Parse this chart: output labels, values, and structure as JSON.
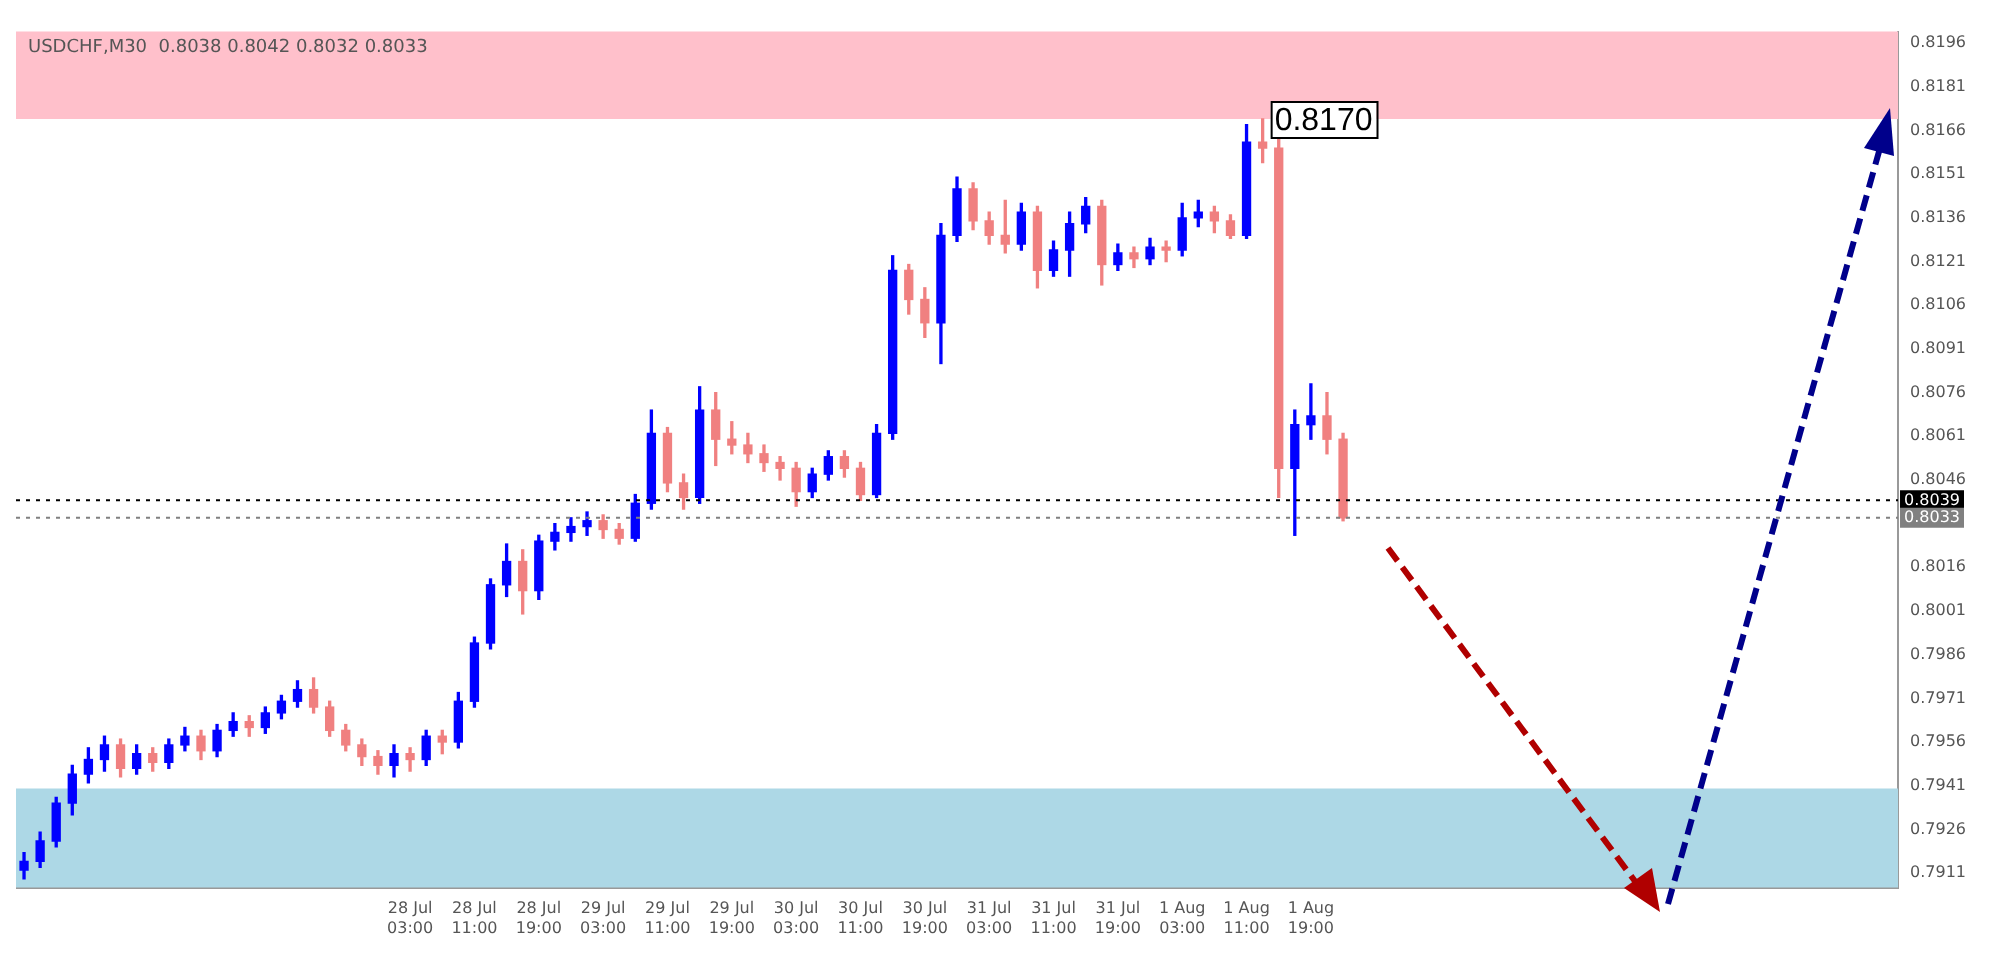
{
  "chart_data": {
    "type": "candlestick",
    "title": "USDCHF,M30  0.8038 0.8042 0.8032 0.8033",
    "categories": [
      null,
      null,
      null,
      null,
      null,
      null,
      null,
      null,
      null,
      null,
      null,
      null,
      null,
      null,
      null,
      null,
      null,
      null,
      null,
      null,
      null,
      null,
      null,
      null,
      "28 Jul 03:00",
      null,
      null,
      null,
      "28 Jul 11:00",
      null,
      null,
      null,
      "28 Jul 19:00",
      null,
      null,
      null,
      "29 Jul 03:00",
      null,
      null,
      null,
      "29 Jul 11:00",
      null,
      null,
      null,
      "29 Jul 19:00",
      null,
      null,
      null,
      "30 Jul 03:00",
      null,
      null,
      null,
      "30 Jul 11:00",
      null,
      null,
      null,
      "30 Jul 19:00",
      null,
      null,
      null,
      "31 Jul 03:00",
      null,
      null,
      null,
      "31 Jul 11:00",
      null,
      null,
      null,
      "31 Jul 19:00",
      null,
      null,
      null,
      "1 Aug 03:00",
      null,
      null,
      null,
      "1 Aug 11:00",
      null,
      null,
      null,
      "1 Aug 19:00",
      null,
      null,
      null,
      null,
      null,
      null,
      null,
      null,
      null,
      null,
      null,
      null,
      null,
      null,
      null,
      null,
      null,
      null,
      null,
      null,
      null,
      null,
      null,
      null,
      null,
      null,
      null,
      null,
      null,
      null,
      null,
      null,
      null,
      null,
      null,
      null
    ],
    "ohlc": [
      [
        0.7912,
        0.7918,
        0.7909,
        0.7915
      ],
      [
        0.7915,
        0.7925,
        0.7913,
        0.7922
      ],
      [
        0.7922,
        0.7937,
        0.792,
        0.7935
      ],
      [
        0.7935,
        0.7948,
        0.7931,
        0.7945
      ],
      [
        0.7945,
        0.7954,
        0.7942,
        0.795
      ],
      [
        0.795,
        0.7958,
        0.7946,
        0.7955
      ],
      [
        0.7955,
        0.7957,
        0.7944,
        0.7947
      ],
      [
        0.7947,
        0.7955,
        0.7945,
        0.7952
      ],
      [
        0.7952,
        0.7954,
        0.7946,
        0.7949
      ],
      [
        0.7949,
        0.7957,
        0.7947,
        0.7955
      ],
      [
        0.7955,
        0.7961,
        0.7953,
        0.7958
      ],
      [
        0.7958,
        0.796,
        0.795,
        0.7953
      ],
      [
        0.7953,
        0.7962,
        0.7951,
        0.796
      ],
      [
        0.796,
        0.7966,
        0.7958,
        0.7963
      ],
      [
        0.7963,
        0.7965,
        0.7958,
        0.7961
      ],
      [
        0.7961,
        0.7968,
        0.7959,
        0.7966
      ],
      [
        0.7966,
        0.7972,
        0.7964,
        0.797
      ],
      [
        0.797,
        0.7977,
        0.7968,
        0.7974
      ],
      [
        0.7974,
        0.7978,
        0.7966,
        0.7968
      ],
      [
        0.7968,
        0.797,
        0.7958,
        0.796
      ],
      [
        0.796,
        0.7962,
        0.7953,
        0.7955
      ],
      [
        0.7955,
        0.7957,
        0.7948,
        0.7951
      ],
      [
        0.7951,
        0.7953,
        0.7945,
        0.7948
      ],
      [
        0.7948,
        0.7955,
        0.7944,
        0.7952
      ],
      [
        0.7952,
        0.7954,
        0.7946,
        0.795
      ],
      [
        0.795,
        0.796,
        0.7948,
        0.7958
      ],
      [
        0.7958,
        0.796,
        0.7952,
        0.7956
      ],
      [
        0.7956,
        0.7973,
        0.7954,
        0.797
      ],
      [
        0.797,
        0.7992,
        0.7968,
        0.799
      ],
      [
        0.799,
        0.8012,
        0.7988,
        0.801
      ],
      [
        0.801,
        0.8024,
        0.8006,
        0.8018
      ],
      [
        0.8018,
        0.8022,
        0.8,
        0.8008
      ],
      [
        0.8008,
        0.8027,
        0.8005,
        0.8025
      ],
      [
        0.8025,
        0.8031,
        0.8022,
        0.8028
      ],
      [
        0.8028,
        0.8033,
        0.8025,
        0.803
      ],
      [
        0.803,
        0.8035,
        0.8027,
        0.8032
      ],
      [
        0.8032,
        0.8034,
        0.8026,
        0.8029
      ],
      [
        0.8029,
        0.8031,
        0.8024,
        0.8026
      ],
      [
        0.8026,
        0.8041,
        0.8025,
        0.8038
      ],
      [
        0.8038,
        0.807,
        0.8036,
        0.8062
      ],
      [
        0.8062,
        0.8064,
        0.8042,
        0.8045
      ],
      [
        0.8045,
        0.8048,
        0.8036,
        0.804
      ],
      [
        0.804,
        0.8078,
        0.8038,
        0.807
      ],
      [
        0.807,
        0.8076,
        0.8051,
        0.806
      ],
      [
        0.806,
        0.8066,
        0.8055,
        0.8058
      ],
      [
        0.8058,
        0.8062,
        0.8052,
        0.8055
      ],
      [
        0.8055,
        0.8058,
        0.8049,
        0.8052
      ],
      [
        0.8052,
        0.8054,
        0.8046,
        0.805
      ],
      [
        0.805,
        0.8052,
        0.8037,
        0.8042
      ],
      [
        0.8042,
        0.805,
        0.804,
        0.8048
      ],
      [
        0.8048,
        0.8056,
        0.8046,
        0.8054
      ],
      [
        0.8054,
        0.8056,
        0.8047,
        0.805
      ],
      [
        0.805,
        0.8052,
        0.8039,
        0.8041
      ],
      [
        0.8041,
        0.8065,
        0.804,
        0.8062
      ],
      [
        0.8062,
        0.8123,
        0.806,
        0.8118
      ],
      [
        0.8118,
        0.812,
        0.8103,
        0.8108
      ],
      [
        0.8108,
        0.8112,
        0.8095,
        0.81
      ],
      [
        0.81,
        0.8134,
        0.8086,
        0.813
      ],
      [
        0.813,
        0.815,
        0.8128,
        0.8146
      ],
      [
        0.8146,
        0.8148,
        0.8132,
        0.8135
      ],
      [
        0.8135,
        0.8138,
        0.8127,
        0.813
      ],
      [
        0.813,
        0.8142,
        0.8124,
        0.8127
      ],
      [
        0.8127,
        0.8141,
        0.8125,
        0.8138
      ],
      [
        0.8138,
        0.814,
        0.8112,
        0.8118
      ],
      [
        0.8118,
        0.8128,
        0.8116,
        0.8125
      ],
      [
        0.8125,
        0.8138,
        0.8116,
        0.8134
      ],
      [
        0.8134,
        0.8143,
        0.8131,
        0.814
      ],
      [
        0.814,
        0.8142,
        0.8113,
        0.812
      ],
      [
        0.812,
        0.8127,
        0.8118,
        0.8124
      ],
      [
        0.8124,
        0.8126,
        0.8119,
        0.8122
      ],
      [
        0.8122,
        0.8129,
        0.812,
        0.8126
      ],
      [
        0.8126,
        0.8128,
        0.8121,
        0.8125
      ],
      [
        0.8125,
        0.8141,
        0.8123,
        0.8136
      ],
      [
        0.8136,
        0.8142,
        0.8133,
        0.8138
      ],
      [
        0.8138,
        0.814,
        0.8131,
        0.8135
      ],
      [
        0.8135,
        0.8137,
        0.8129,
        0.813
      ],
      [
        0.813,
        0.8168,
        0.8129,
        0.8162
      ],
      [
        0.8162,
        0.817,
        0.8155,
        0.816
      ],
      [
        0.816,
        0.8163,
        0.804,
        0.805
      ],
      [
        0.805,
        0.807,
        0.8027,
        0.8065
      ],
      [
        0.8065,
        0.8079,
        0.806,
        0.8068
      ],
      [
        0.8068,
        0.8076,
        0.8055,
        0.806
      ],
      [
        0.806,
        0.8062,
        0.8032,
        0.8033
      ],
      null,
      null,
      null,
      null,
      null,
      null,
      null,
      null,
      null,
      null,
      null,
      null,
      null,
      null,
      null,
      null,
      null,
      null,
      null,
      null,
      null,
      null,
      null,
      null,
      null,
      null,
      null,
      null,
      null,
      null,
      null,
      null,
      null,
      null
    ],
    "colors": [
      "#0000ff",
      "#0000ff",
      "#0000ff",
      "#0000ff",
      "#0000ff",
      "#0000ff",
      "#f08080",
      "#0000ff",
      "#f08080",
      "#0000ff",
      "#0000ff",
      "#f08080",
      "#0000ff",
      "#0000ff",
      "#f08080",
      "#0000ff",
      "#0000ff",
      "#0000ff",
      "#f08080",
      "#f08080",
      "#f08080",
      "#f08080",
      "#f08080",
      "#0000ff",
      "#f08080",
      "#0000ff",
      "#f08080",
      "#0000ff",
      "#0000ff",
      "#0000ff",
      "#0000ff",
      "#f08080",
      "#0000ff",
      "#0000ff",
      "#0000ff",
      "#0000ff",
      "#f08080",
      "#f08080",
      "#0000ff",
      "#0000ff",
      "#f08080",
      "#f08080",
      "#0000ff",
      "#f08080",
      "#f08080",
      "#f08080",
      "#f08080",
      "#f08080",
      "#f08080",
      "#0000ff",
      "#0000ff",
      "#f08080",
      "#f08080",
      "#0000ff",
      "#0000ff",
      "#f08080",
      "#f08080",
      "#0000ff",
      "#0000ff",
      "#f08080",
      "#f08080",
      "#f08080",
      "#0000ff",
      "#f08080",
      "#0000ff",
      "#0000ff",
      "#0000ff",
      "#f08080",
      "#0000ff",
      "#f08080",
      "#0000ff",
      "#f08080",
      "#0000ff",
      "#0000ff",
      "#f08080",
      "#f08080",
      "#0000ff",
      "#f08080",
      "#f08080",
      "#0000ff",
      "#0000ff",
      "#f08080",
      "#f08080",
      null,
      null,
      null,
      null,
      null,
      null,
      null,
      null,
      null,
      null,
      null,
      null,
      null,
      null,
      null,
      null,
      null,
      null,
      null,
      null,
      null,
      null,
      null,
      null,
      null,
      null,
      null,
      null,
      null,
      null,
      null,
      null,
      null,
      null
    ],
    "ylim": [
      0.7906,
      0.82
    ],
    "yticks": [
      0.7911,
      0.7926,
      0.7941,
      0.7956,
      0.7971,
      0.7986,
      0.8001,
      0.8016,
      0.8046,
      0.8061,
      0.8076,
      0.8091,
      0.8106,
      0.8121,
      0.8136,
      0.8151,
      0.8166,
      0.8181,
      0.8196
    ],
    "bands": [
      {
        "axis": "y",
        "from": 0.817,
        "to": 0.82,
        "color": "#ffc0cb"
      },
      {
        "axis": "y",
        "from": 0.7906,
        "to": 0.794,
        "color": "#add8e6"
      }
    ],
    "ref_lines": [
      {
        "axis": "y",
        "value": 0.8039,
        "label": "0.8039",
        "color": "#000000"
      },
      {
        "axis": "y",
        "value": 0.8033,
        "label": "0.8033",
        "color": "#808080"
      }
    ],
    "annotations": [
      {
        "text": "0.8170",
        "y": 0.817
      }
    ],
    "grid": false,
    "legend": false
  }
}
